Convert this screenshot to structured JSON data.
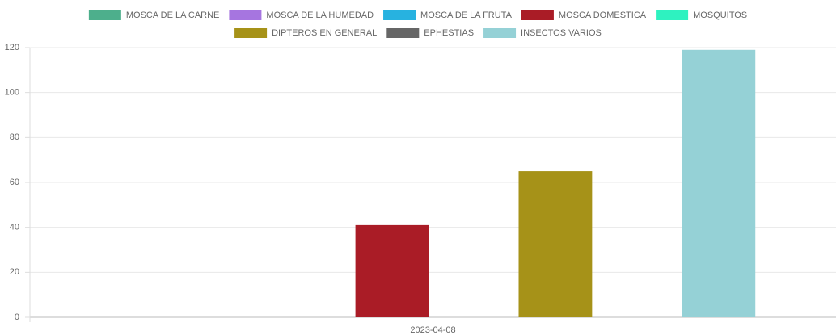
{
  "chart_data": {
    "type": "bar",
    "categories": [
      "2023-04-08"
    ],
    "series": [
      {
        "name": "MOSCA DE LA CARNE",
        "color": "#4daf8c",
        "values": [
          0
        ]
      },
      {
        "name": "MOSCA DE LA HUMEDAD",
        "color": "#a675e0",
        "values": [
          0
        ]
      },
      {
        "name": "MOSCA DE LA FRUTA",
        "color": "#27b2e0",
        "values": [
          0
        ]
      },
      {
        "name": "MOSCA DOMESTICA",
        "color": "#aa1c26",
        "values": [
          41
        ]
      },
      {
        "name": "MOSQUITOS",
        "color": "#2ef2c0",
        "values": [
          0
        ]
      },
      {
        "name": "DIPTEROS EN GENERAL",
        "color": "#a69218",
        "values": [
          65
        ]
      },
      {
        "name": "EPHESTIAS",
        "color": "#666666",
        "values": [
          0
        ]
      },
      {
        "name": "INSECTOS VARIOS",
        "color": "#95d1d6",
        "values": [
          119
        ]
      }
    ],
    "ylim": [
      0,
      120
    ],
    "yticks": [
      0,
      20,
      40,
      60,
      80,
      100,
      120
    ],
    "grid": true,
    "legend": "top"
  }
}
